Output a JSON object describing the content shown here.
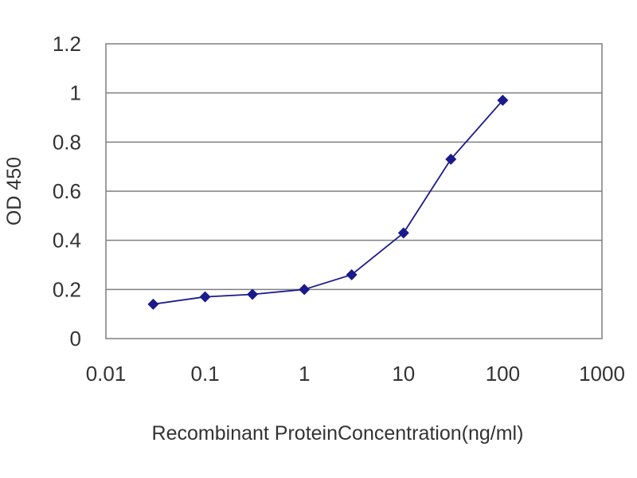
{
  "chart_data": {
    "type": "scatter",
    "title": "",
    "xlabel": "Recombinant ProteinConcentration(ng/ml)",
    "ylabel": "OD 450",
    "x_scale": "log",
    "xlim": [
      0.01,
      1000
    ],
    "ylim": [
      0,
      1.2
    ],
    "x_ticks": [
      "0.01",
      "0.1",
      "1",
      "10",
      "100",
      "1000"
    ],
    "y_ticks": [
      "0",
      "0.2",
      "0.4",
      "0.6",
      "0.8",
      "1",
      "1.2"
    ],
    "grid": "horizontal",
    "legend": "none",
    "line_connected": true,
    "series": [
      {
        "color": "#1a1a8c",
        "marker": "diamond",
        "x": [
          0.03,
          0.1,
          0.3,
          1,
          3,
          10,
          30,
          100
        ],
        "y": [
          0.14,
          0.17,
          0.18,
          0.2,
          0.26,
          0.43,
          0.73,
          0.97
        ]
      }
    ]
  }
}
